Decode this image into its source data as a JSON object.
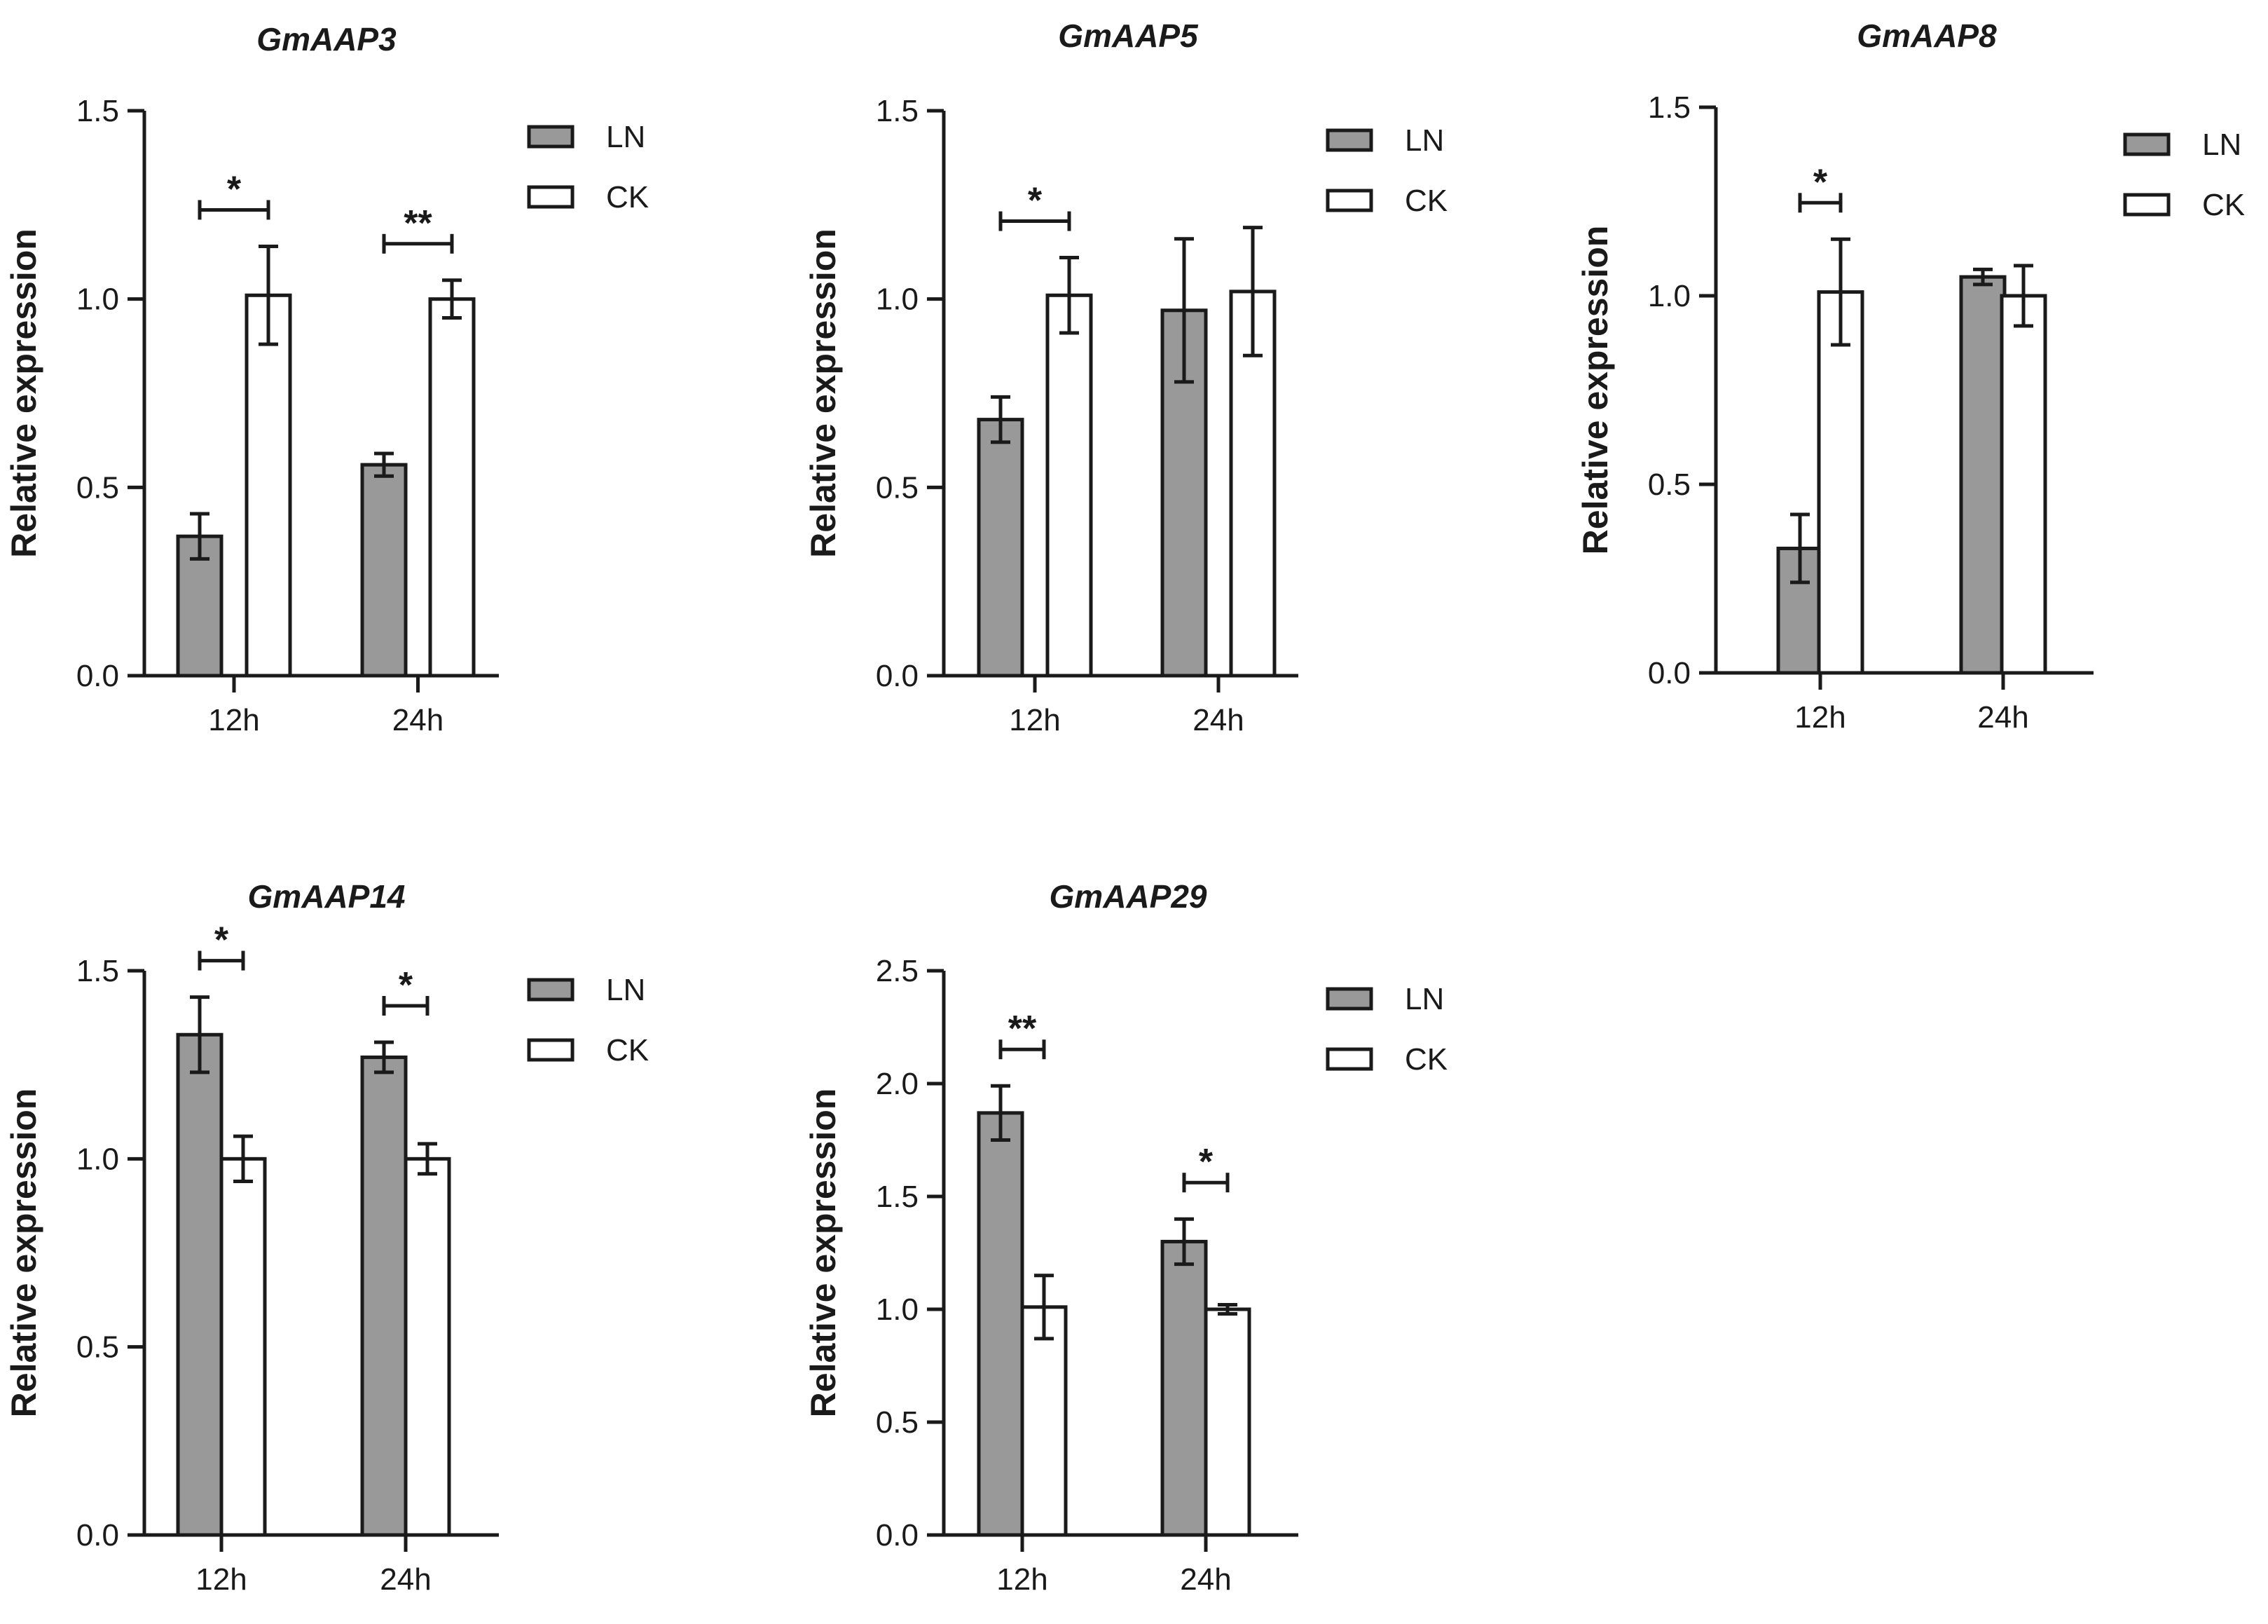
{
  "series_colors": {
    "LN": "#999999",
    "CK": "#ffffff"
  },
  "chart_data": [
    {
      "type": "bar",
      "title": "GmAAP3",
      "ylabel": "Relative expression",
      "categories": [
        "12h",
        "24h"
      ],
      "ylim": [
        0,
        1.5
      ],
      "yticks": [
        "0.0",
        "0.5",
        "1.0",
        "1.5"
      ],
      "legend": [
        "LN",
        "CK"
      ],
      "legend_position": "top-right",
      "series": [
        {
          "name": "LN",
          "values": [
            0.37,
            0.56
          ],
          "errors": [
            0.06,
            0.03
          ]
        },
        {
          "name": "CK",
          "values": [
            1.01,
            1.0
          ],
          "errors": [
            0.13,
            0.05
          ]
        }
      ],
      "significance": [
        "*",
        "**"
      ]
    },
    {
      "type": "bar",
      "title": "GmAAP5",
      "ylabel": "Relative expression",
      "categories": [
        "12h",
        "24h"
      ],
      "ylim": [
        0,
        1.5
      ],
      "yticks": [
        "0.0",
        "0.5",
        "1.0",
        "1.5"
      ],
      "legend": [
        "LN",
        "CK"
      ],
      "legend_position": "top-right",
      "series": [
        {
          "name": "LN",
          "values": [
            0.68,
            0.97
          ],
          "errors": [
            0.06,
            0.19
          ]
        },
        {
          "name": "CK",
          "values": [
            1.01,
            1.02
          ],
          "errors": [
            0.1,
            0.17
          ]
        }
      ],
      "significance": [
        "*",
        ""
      ]
    },
    {
      "type": "bar",
      "title": "GmAAP8",
      "ylabel": "Relative expression",
      "categories": [
        "12h",
        "24h"
      ],
      "ylim": [
        0,
        1.5
      ],
      "yticks": [
        "0.0",
        "0.5",
        "1.0",
        "1.5"
      ],
      "legend": [
        "LN",
        "CK"
      ],
      "legend_position": "top-right",
      "series": [
        {
          "name": "LN",
          "values": [
            0.33,
            1.05
          ],
          "errors": [
            0.09,
            0.02
          ]
        },
        {
          "name": "CK",
          "values": [
            1.01,
            1.0
          ],
          "errors": [
            0.14,
            0.08
          ]
        }
      ],
      "significance": [
        "*",
        ""
      ]
    },
    {
      "type": "bar",
      "title": "GmAAP14",
      "ylabel": "Relative expression",
      "categories": [
        "12h",
        "24h"
      ],
      "ylim": [
        0,
        1.5
      ],
      "yticks": [
        "0.0",
        "0.5",
        "1.0",
        "1.5"
      ],
      "legend": [
        "LN",
        "CK"
      ],
      "legend_position": "top-right",
      "series": [
        {
          "name": "LN",
          "values": [
            1.33,
            1.27
          ],
          "errors": [
            0.1,
            0.04
          ]
        },
        {
          "name": "CK",
          "values": [
            1.0,
            1.0
          ],
          "errors": [
            0.06,
            0.04
          ]
        }
      ],
      "significance": [
        "*",
        "*"
      ]
    },
    {
      "type": "bar",
      "title": "GmAAP29",
      "ylabel": "Relative expression",
      "categories": [
        "12h",
        "24h"
      ],
      "ylim": [
        0,
        2.5
      ],
      "yticks": [
        "0.0",
        "0.5",
        "1.0",
        "1.5",
        "2.0",
        "2.5"
      ],
      "legend": [
        "LN",
        "CK"
      ],
      "legend_position": "top-right",
      "series": [
        {
          "name": "LN",
          "values": [
            1.87,
            1.3
          ],
          "errors": [
            0.12,
            0.1
          ]
        },
        {
          "name": "CK",
          "values": [
            1.01,
            1.0
          ],
          "errors": [
            0.14,
            0.02
          ]
        }
      ],
      "significance": [
        "**",
        "*"
      ]
    }
  ]
}
